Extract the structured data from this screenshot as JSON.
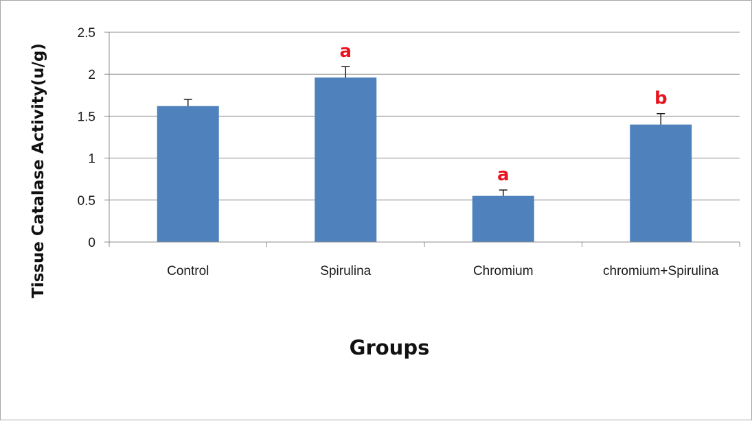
{
  "chart_data": {
    "type": "bar",
    "xlabel": "Groups",
    "ylabel": "Tissue Catalase Activity(u/g)",
    "categories": [
      "Control",
      "Spirulina",
      "Chromium",
      "chromium+Spirulina"
    ],
    "values": [
      1.62,
      1.96,
      0.55,
      1.4
    ],
    "errors": [
      0.08,
      0.13,
      0.07,
      0.13
    ],
    "significance": [
      "",
      "a",
      "a",
      "b"
    ],
    "ylim": [
      0,
      2.5
    ],
    "yticks": [
      0,
      0.5,
      1,
      1.5,
      2,
      2.5
    ],
    "ytick_labels": [
      "0",
      "0.5",
      "1",
      "1.5",
      "2",
      "2.5"
    ],
    "grid": true,
    "colors": {
      "bar": "#4f81bd",
      "significance": "#e8131f",
      "grid": "#8c8c8c",
      "axis": "#8c8c8c"
    }
  }
}
